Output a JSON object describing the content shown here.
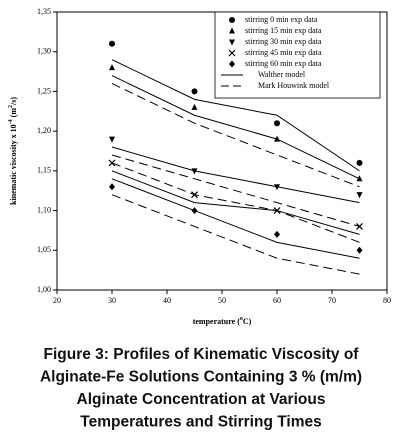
{
  "chart_data": {
    "type": "scatter",
    "y_label": "kinematic viscosity x 10",
    "y_label_sup": "-4",
    "y_label_unit": " (m",
    "y_label_unit_sup": "2",
    "y_label_end": "/s)",
    "x_label": "temperature (",
    "x_label_sup": "o",
    "x_label_end": "C)",
    "x": [
      30,
      45,
      60,
      75
    ],
    "xlim": [
      20,
      80
    ],
    "xticks": [
      20,
      30,
      40,
      50,
      60,
      70,
      80
    ],
    "ylim": [
      1.0,
      1.35
    ],
    "yticks": [
      {
        "value": 1.0,
        "label": "1,00"
      },
      {
        "value": 1.05,
        "label": "1,05"
      },
      {
        "value": 1.1,
        "label": "1,10"
      },
      {
        "value": 1.15,
        "label": "1,15"
      },
      {
        "value": 1.2,
        "label": "1,20"
      },
      {
        "value": 1.25,
        "label": "1,25"
      },
      {
        "value": 1.3,
        "label": "1,30"
      },
      {
        "value": 1.35,
        "label": "1,35"
      }
    ],
    "series": [
      {
        "name": "stirring 0 min exp data",
        "marker": "circle",
        "color": "#000000",
        "values": [
          1.31,
          1.25,
          1.21,
          1.16
        ]
      },
      {
        "name": "stirring 15 min exp data",
        "marker": "triangle-up",
        "color": "#000000",
        "values": [
          1.28,
          1.23,
          1.19,
          1.14
        ]
      },
      {
        "name": "stirring 30 min exp data",
        "marker": "triangle-down",
        "color": "#000000",
        "values": [
          1.19,
          1.15,
          1.13,
          1.12
        ]
      },
      {
        "name": "stirring 45 min exp data",
        "marker": "x",
        "color": "#000000",
        "values": [
          1.16,
          1.12,
          1.1,
          1.08
        ]
      },
      {
        "name": "stirring 60 min exp data",
        "marker": "diamond",
        "color": "#000000",
        "values": [
          1.13,
          1.1,
          1.07,
          1.05
        ]
      }
    ],
    "models": [
      {
        "name": "Walther model",
        "dash": false,
        "color": "#000000",
        "curves": [
          [
            1.29,
            1.24,
            1.22,
            1.15
          ],
          [
            1.27,
            1.22,
            1.19,
            1.14
          ],
          [
            1.18,
            1.15,
            1.13,
            1.11
          ],
          [
            1.15,
            1.11,
            1.1,
            1.07
          ],
          [
            1.14,
            1.1,
            1.06,
            1.04
          ]
        ]
      },
      {
        "name": "Mark Houwink model",
        "dash": true,
        "color": "#000000",
        "curves": [
          [
            1.26,
            1.21,
            1.17,
            1.13
          ],
          [
            1.17,
            1.14,
            1.11,
            1.08
          ],
          [
            1.16,
            1.12,
            1.1,
            1.06
          ],
          [
            1.12,
            1.08,
            1.04,
            1.02
          ]
        ]
      }
    ],
    "caption": [
      "Figure 3: Profiles of Kinematic Viscosity of",
      "Alginate-Fe Solutions Containing 3 % (m/m)",
      "Alginate Concentration at Various",
      "Temperatures and Stirring Times"
    ]
  }
}
